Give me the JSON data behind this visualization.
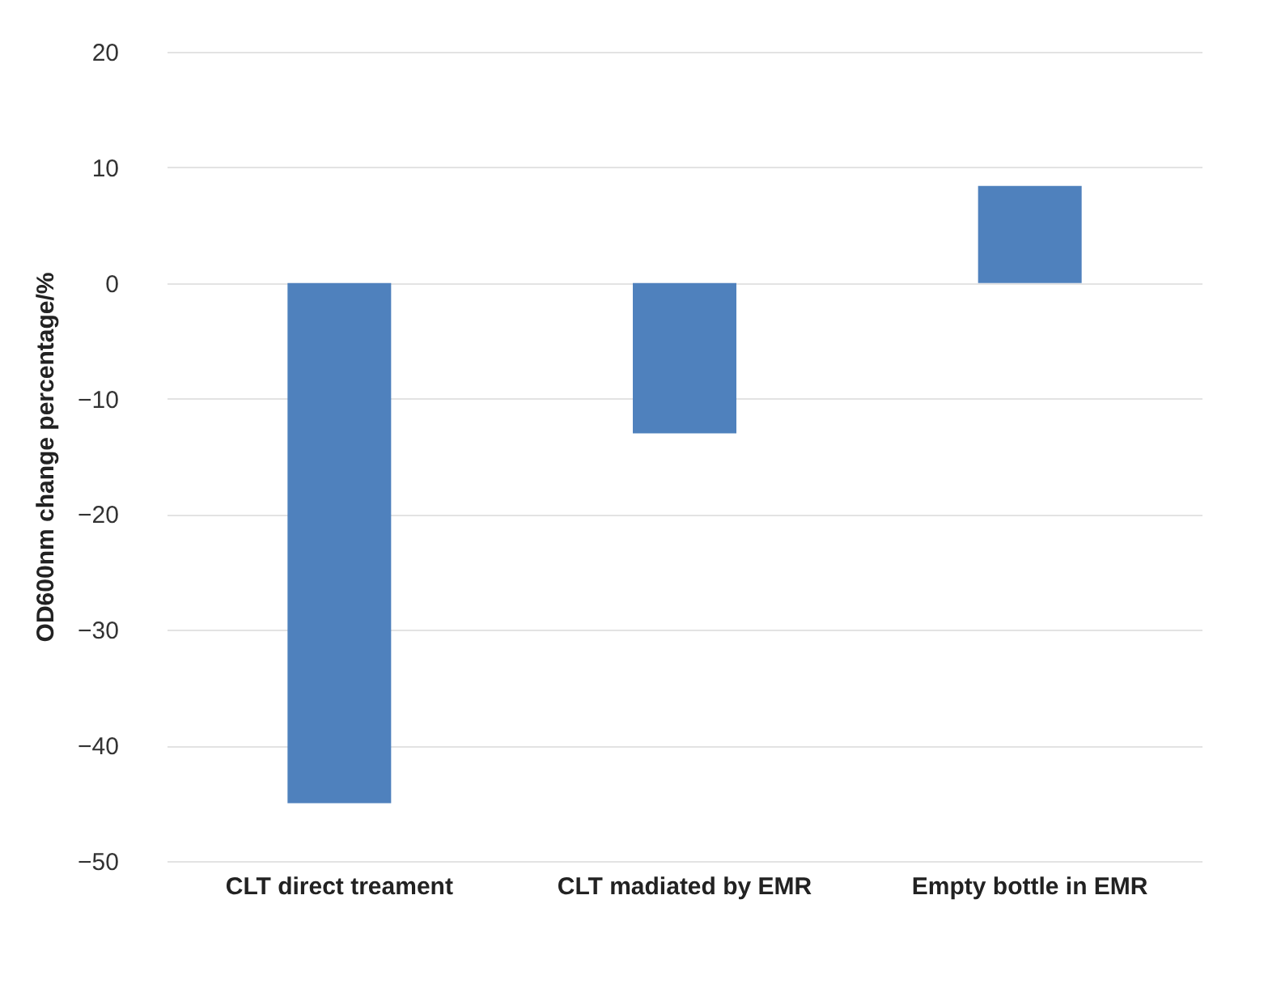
{
  "chart_data": {
    "type": "bar",
    "ylabel": "OD600nm change percentage/%",
    "categories": [
      "CLT direct treament",
      "CLT madiated by EMR",
      "Empty bottle in EMR"
    ],
    "values": [
      -45,
      -13,
      8.4
    ],
    "color": "#4f81bd",
    "ylim": [
      -50,
      20
    ],
    "yticks": [
      -50,
      -40,
      -30,
      -20,
      -10,
      0,
      10,
      20
    ],
    "grid": "y"
  }
}
